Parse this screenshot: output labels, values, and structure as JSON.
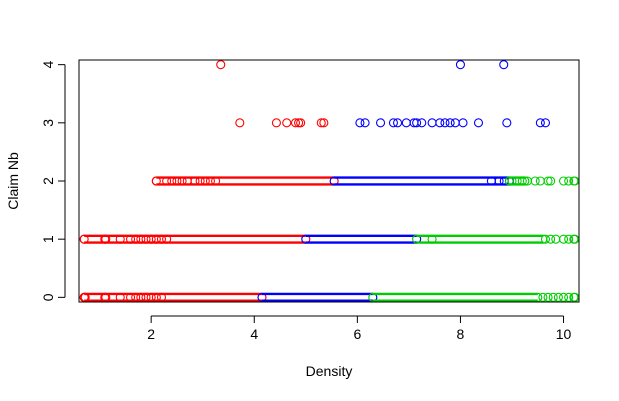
{
  "chart_data": {
    "type": "scatter",
    "title": "",
    "xlabel": "Density",
    "ylabel": "Claim Nb",
    "xlim": [
      0.6,
      10.3
    ],
    "ylim": [
      -0.08,
      4.08
    ],
    "x_ticks": [
      2,
      4,
      6,
      8,
      10
    ],
    "y_ticks": [
      0,
      1,
      2,
      3,
      4
    ],
    "grid": false,
    "legend": "none",
    "marker": "open-circle",
    "series": [
      {
        "color": "#ff0000",
        "points": [
          {
            "x": 3.35,
            "y": 4
          },
          {
            "x": 3.72,
            "y": 3
          },
          {
            "x": 4.43,
            "y": 3
          },
          {
            "x": 4.63,
            "y": 3
          },
          {
            "x": 4.8,
            "y": 3
          },
          {
            "x": 4.86,
            "y": 3
          },
          {
            "x": 4.9,
            "y": 3
          },
          {
            "x": 5.3,
            "y": 3
          },
          {
            "x": 5.35,
            "y": 3
          }
        ],
        "bands": [
          {
            "y": 2,
            "x_from": 2.1,
            "x_to": 5.55,
            "x_sparse": [
              2.1,
              2.3,
              2.4,
              2.5,
              2.6,
              2.7,
              2.85,
              2.95,
              3.05,
              3.15,
              3.25
            ]
          },
          {
            "y": 1,
            "x_from": 0.7,
            "x_to": 5.0,
            "x_sparse": [
              0.7,
              1.1,
              1.12,
              1.4,
              1.6,
              1.7,
              1.8,
              1.9,
              2.0,
              2.1,
              2.2,
              2.3
            ]
          },
          {
            "y": 0,
            "x_from": 0.7,
            "x_to": 4.15,
            "x_sparse": [
              0.7,
              0.72,
              1.1,
              1.12,
              1.4,
              1.6,
              1.7,
              1.8,
              1.9,
              2.0,
              2.1,
              2.2
            ]
          }
        ]
      },
      {
        "color": "#0000ff",
        "points": [
          {
            "x": 8.0,
            "y": 4
          },
          {
            "x": 8.84,
            "y": 4
          },
          {
            "x": 6.05,
            "y": 3
          },
          {
            "x": 6.15,
            "y": 3
          },
          {
            "x": 6.45,
            "y": 3
          },
          {
            "x": 6.7,
            "y": 3
          },
          {
            "x": 6.78,
            "y": 3
          },
          {
            "x": 6.95,
            "y": 3
          },
          {
            "x": 7.1,
            "y": 3
          },
          {
            "x": 7.15,
            "y": 3
          },
          {
            "x": 7.25,
            "y": 3
          },
          {
            "x": 7.45,
            "y": 3
          },
          {
            "x": 7.6,
            "y": 3
          },
          {
            "x": 7.7,
            "y": 3
          },
          {
            "x": 7.8,
            "y": 3
          },
          {
            "x": 7.9,
            "y": 3
          },
          {
            "x": 8.05,
            "y": 3
          },
          {
            "x": 8.35,
            "y": 3
          },
          {
            "x": 8.9,
            "y": 3
          },
          {
            "x": 9.55,
            "y": 3
          },
          {
            "x": 9.65,
            "y": 3
          }
        ],
        "bands": [
          {
            "y": 2,
            "x_from": 5.55,
            "x_to": 8.95,
            "x_sparse": [
              8.6,
              8.75,
              8.85,
              8.95
            ]
          },
          {
            "y": 1,
            "x_from": 5.0,
            "x_to": 7.15,
            "x_sparse": []
          },
          {
            "y": 0,
            "x_from": 4.15,
            "x_to": 6.3,
            "x_sparse": []
          }
        ]
      },
      {
        "color": "#00cd00",
        "points": [],
        "bands": [
          {
            "y": 2,
            "x_from": 8.95,
            "x_to": 9.25,
            "x_sparse": [
              9.0,
              9.1,
              9.2,
              9.3,
              9.45,
              9.55,
              9.7,
              9.75,
              10.0,
              10.1,
              10.2,
              10.22
            ]
          },
          {
            "y": 1,
            "x_from": 7.15,
            "x_to": 9.6,
            "x_sparse": [
              7.45,
              9.65,
              9.75,
              9.85,
              10.0,
              10.1,
              10.2,
              10.22
            ]
          },
          {
            "y": 0,
            "x_from": 6.3,
            "x_to": 9.5,
            "x_sparse": [
              9.6,
              9.7,
              9.8,
              9.9,
              10.0,
              10.1,
              10.2,
              10.22
            ]
          }
        ]
      }
    ]
  }
}
